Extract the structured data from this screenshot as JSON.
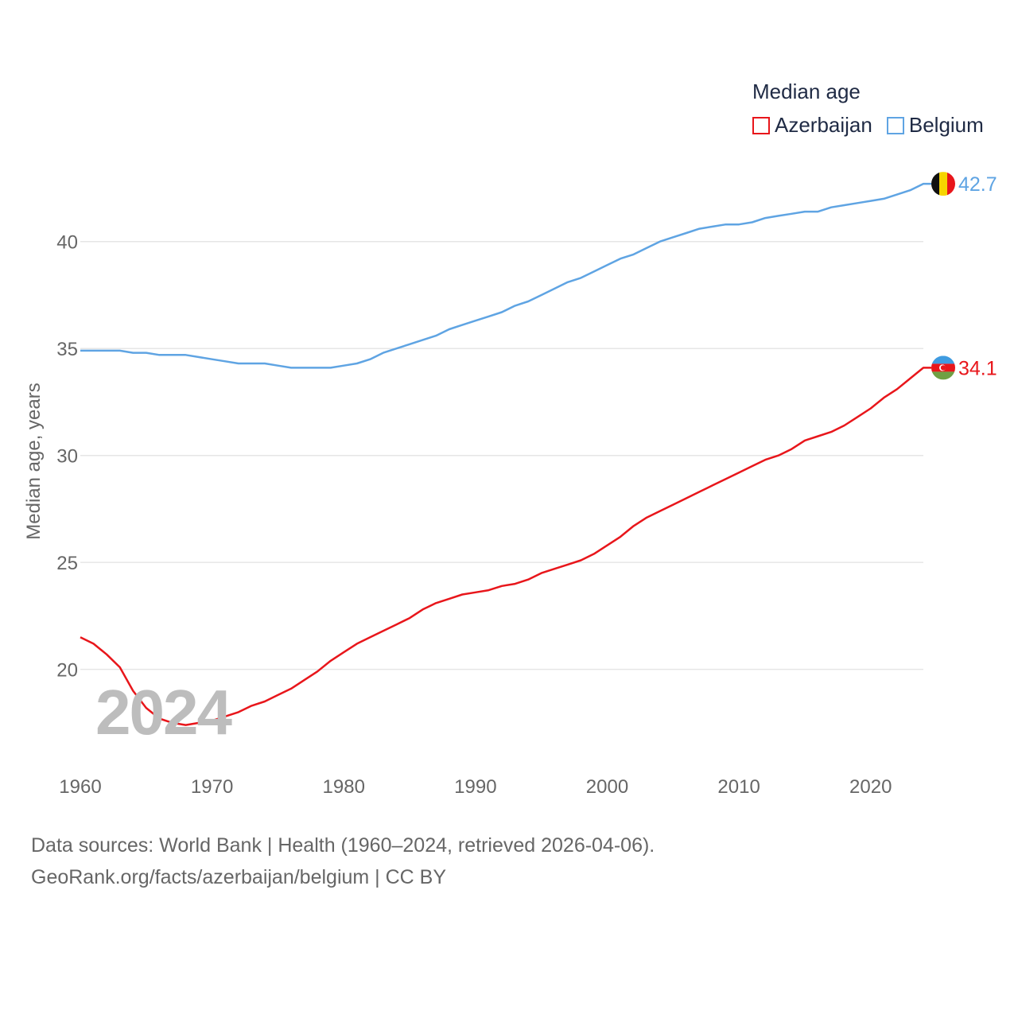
{
  "legend": {
    "title": "Median age",
    "items": [
      {
        "label": "Azerbaijan",
        "color": "#e8161b"
      },
      {
        "label": "Belgium",
        "color": "#5fa4e3"
      }
    ]
  },
  "year_badge": "2024",
  "footer": {
    "line1": "Data sources: World Bank | Health (1960–2024, retrieved 2026-04-06).",
    "line2": "GeoRank.org/facts/azerbaijan/belgium | CC BY"
  },
  "chart_data": {
    "type": "line",
    "title": "Median age",
    "xlabel": "",
    "ylabel": "Median age, years",
    "x": [
      1960,
      1961,
      1962,
      1963,
      1964,
      1965,
      1966,
      1967,
      1968,
      1969,
      1970,
      1971,
      1972,
      1973,
      1974,
      1975,
      1976,
      1977,
      1978,
      1979,
      1980,
      1981,
      1982,
      1983,
      1984,
      1985,
      1986,
      1987,
      1988,
      1989,
      1990,
      1991,
      1992,
      1993,
      1994,
      1995,
      1996,
      1997,
      1998,
      1999,
      2000,
      2001,
      2002,
      2003,
      2004,
      2005,
      2006,
      2007,
      2008,
      2009,
      2010,
      2011,
      2012,
      2013,
      2014,
      2015,
      2016,
      2017,
      2018,
      2019,
      2020,
      2021,
      2022,
      2023,
      2024
    ],
    "xlim": [
      1960,
      2024
    ],
    "ylim": [
      15.6,
      44.6
    ],
    "xticks": [
      1960,
      1970,
      1980,
      1990,
      2000,
      2010,
      2020
    ],
    "yticks": [
      20,
      25,
      30,
      35,
      40
    ],
    "grid": true,
    "series": [
      {
        "name": "Azerbaijan",
        "color": "#e8161b",
        "end_label": "34.1",
        "values": [
          21.5,
          21.2,
          20.7,
          20.1,
          19.0,
          18.2,
          17.7,
          17.5,
          17.4,
          17.5,
          17.6,
          17.8,
          18.0,
          18.3,
          18.5,
          18.8,
          19.1,
          19.5,
          19.9,
          20.4,
          20.8,
          21.2,
          21.5,
          21.8,
          22.1,
          22.4,
          22.8,
          23.1,
          23.3,
          23.5,
          23.6,
          23.7,
          23.9,
          24.0,
          24.2,
          24.5,
          24.7,
          24.9,
          25.1,
          25.4,
          25.8,
          26.2,
          26.7,
          27.1,
          27.4,
          27.7,
          28.0,
          28.3,
          28.6,
          28.9,
          29.2,
          29.5,
          29.8,
          30.0,
          30.3,
          30.7,
          30.9,
          31.1,
          31.4,
          31.8,
          32.2,
          32.7,
          33.1,
          33.6,
          34.1
        ]
      },
      {
        "name": "Belgium",
        "color": "#5fa4e3",
        "end_label": "42.7",
        "values": [
          34.9,
          34.9,
          34.9,
          34.9,
          34.8,
          34.8,
          34.7,
          34.7,
          34.7,
          34.6,
          34.5,
          34.4,
          34.3,
          34.3,
          34.3,
          34.2,
          34.1,
          34.1,
          34.1,
          34.1,
          34.2,
          34.3,
          34.5,
          34.8,
          35.0,
          35.2,
          35.4,
          35.6,
          35.9,
          36.1,
          36.3,
          36.5,
          36.7,
          37.0,
          37.2,
          37.5,
          37.8,
          38.1,
          38.3,
          38.6,
          38.9,
          39.2,
          39.4,
          39.7,
          40.0,
          40.2,
          40.4,
          40.6,
          40.7,
          40.8,
          40.8,
          40.9,
          41.1,
          41.2,
          41.3,
          41.4,
          41.4,
          41.6,
          41.7,
          41.8,
          41.9,
          42.0,
          42.2,
          42.4,
          42.7
        ]
      }
    ]
  }
}
